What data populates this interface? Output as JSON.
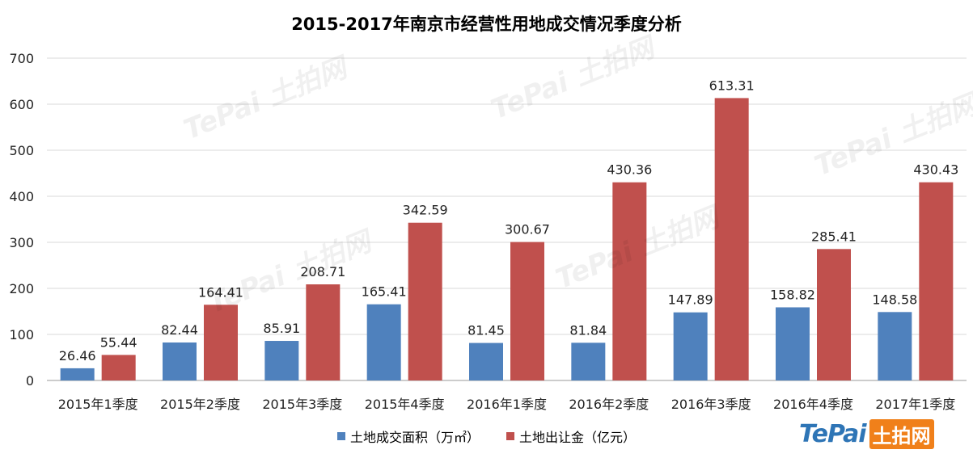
{
  "chart_data": {
    "type": "bar",
    "title": "2015-2017年南京市经营性用地成交情况季度分析",
    "categories": [
      "2015年1季度",
      "2015年2季度",
      "2015年3季度",
      "2015年4季度",
      "2016年1季度",
      "2016年2季度",
      "2016年3季度",
      "2016年4季度",
      "2017年1季度"
    ],
    "series": [
      {
        "name": "土地成交面积（万㎡）",
        "color": "#4f81bd",
        "values": [
          26.46,
          82.44,
          85.91,
          165.41,
          81.45,
          81.84,
          147.89,
          158.82,
          148.58
        ]
      },
      {
        "name": "土地出让金（亿元）",
        "color": "#c0504d",
        "values": [
          55.44,
          164.41,
          208.71,
          342.59,
          300.67,
          430.36,
          613.31,
          285.41,
          430.43
        ]
      }
    ],
    "ylim": [
      0,
      700
    ],
    "yticks": [
      "0",
      "100",
      "200",
      "300",
      "400",
      "500",
      "600",
      "700"
    ],
    "grid": true,
    "legend": "bottom"
  },
  "logo": {
    "latin": "TePai",
    "cn": "土拍网"
  },
  "watermark": {
    "text": "TePai 土拍网"
  }
}
